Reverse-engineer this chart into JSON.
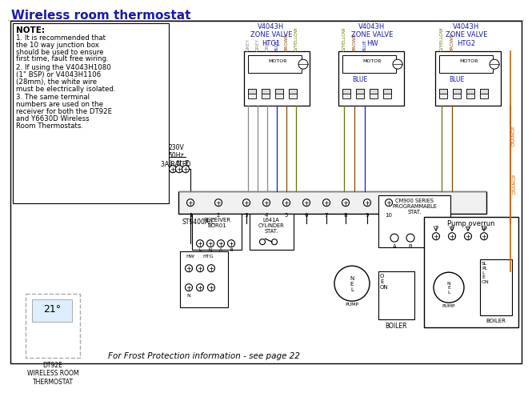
{
  "title": "Wireless room thermostat",
  "title_color": "#1a1aaa",
  "bg": "#ffffff",
  "black": "#000000",
  "blue": "#1a1aaa",
  "orange": "#cc6600",
  "grey": "#888888",
  "brown": "#884400",
  "gyellow": "#667700",
  "frost_text": "For Frost Protection information - see page 22",
  "dt92e_text": "DT92E\nWIRELESS ROOM\nTHERMOSTAT",
  "voltage_text": "230V\n50Hz\n3A RATED",
  "valve1_text": "V4043H\nZONE VALVE\nHTG1",
  "valve2_text": "V4043H\nZONE VALVE\nHW",
  "valve3_text": "V4043H\nZONE VALVE\nHTG2",
  "recv_text": "RECEIVER\nBOR01",
  "cyl_text": "L641A\nCYLINDER\nSTAT.",
  "cm900_text": "CM900 SERIES\nPROGRAMMABLE\nSTAT.",
  "st9400_text": "ST9400A/C",
  "hw_htg_text": "HW HTG",
  "pump_overrun_text": "Pump overrun",
  "boiler_text": "BOILER",
  "pump_text": "PUMP",
  "note_header": "NOTE:",
  "note_body": [
    "1. It is recommended that",
    "the 10 way junction box",
    "should be used to ensure",
    "first time, fault free wiring.",
    "2. If using the V4043H1080",
    "(1\" BSP) or V4043H1106",
    "(28mm), the white wire",
    "must be electrically isolated.",
    "3. The same terminal",
    "numbers are used on the",
    "receiver for both the DT92E",
    "and Y6630D Wireless",
    "Room Thermostats."
  ]
}
